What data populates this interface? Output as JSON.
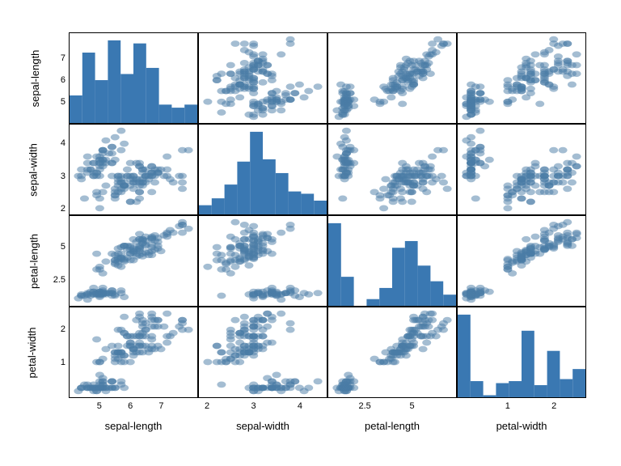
{
  "chart_type": "scatter_matrix",
  "background_color": "#ffffff",
  "border_color": "#000000",
  "marker_color": "#4a7ba6",
  "marker_opacity": 0.5,
  "marker_radius": 3.5,
  "hist_color": "#3a78b2",
  "hist_bins": 10,
  "font_family": "sans-serif",
  "axis_label_fontsize": 13,
  "tick_fontsize": 11,
  "variables": [
    {
      "name": "sepal-length",
      "min": 4.3,
      "max": 7.9,
      "ticks": [
        5,
        6,
        7
      ],
      "hist_counts": [
        9,
        23,
        14,
        27,
        16,
        26,
        18,
        6,
        5,
        6
      ]
    },
    {
      "name": "sepal-width",
      "min": 2.0,
      "max": 4.4,
      "ticks": [
        2,
        3,
        4
      ],
      "hist_counts": [
        4,
        7,
        13,
        23,
        36,
        24,
        18,
        10,
        9,
        6
      ]
    },
    {
      "name": "petal-length",
      "min": 1.0,
      "max": 6.9,
      "ticks": [
        2.5,
        5.0
      ],
      "hist_counts": [
        37,
        13,
        0,
        3,
        8,
        26,
        29,
        18,
        11,
        5
      ]
    },
    {
      "name": "petal-width",
      "min": 0.1,
      "max": 2.5,
      "ticks": [
        1,
        2
      ],
      "hist_counts": [
        41,
        8,
        1,
        7,
        8,
        33,
        6,
        23,
        9,
        14
      ]
    }
  ],
  "iris_data": [
    [
      5.1,
      3.5,
      1.4,
      0.2
    ],
    [
      4.9,
      3.0,
      1.4,
      0.2
    ],
    [
      4.7,
      3.2,
      1.3,
      0.2
    ],
    [
      4.6,
      3.1,
      1.5,
      0.2
    ],
    [
      5.0,
      3.6,
      1.4,
      0.2
    ],
    [
      5.4,
      3.9,
      1.7,
      0.4
    ],
    [
      4.6,
      3.4,
      1.4,
      0.3
    ],
    [
      5.0,
      3.4,
      1.5,
      0.2
    ],
    [
      4.4,
      2.9,
      1.4,
      0.2
    ],
    [
      4.9,
      3.1,
      1.5,
      0.1
    ],
    [
      5.4,
      3.7,
      1.5,
      0.2
    ],
    [
      4.8,
      3.4,
      1.6,
      0.2
    ],
    [
      4.8,
      3.0,
      1.4,
      0.1
    ],
    [
      4.3,
      3.0,
      1.1,
      0.1
    ],
    [
      5.8,
      4.0,
      1.2,
      0.2
    ],
    [
      5.7,
      4.4,
      1.5,
      0.4
    ],
    [
      5.4,
      3.9,
      1.3,
      0.4
    ],
    [
      5.1,
      3.5,
      1.4,
      0.3
    ],
    [
      5.7,
      3.8,
      1.7,
      0.3
    ],
    [
      5.1,
      3.8,
      1.5,
      0.3
    ],
    [
      5.4,
      3.4,
      1.7,
      0.2
    ],
    [
      5.1,
      3.7,
      1.5,
      0.4
    ],
    [
      4.6,
      3.6,
      1.0,
      0.2
    ],
    [
      5.1,
      3.3,
      1.7,
      0.5
    ],
    [
      4.8,
      3.4,
      1.9,
      0.2
    ],
    [
      5.0,
      3.0,
      1.6,
      0.2
    ],
    [
      5.0,
      3.4,
      1.6,
      0.4
    ],
    [
      5.2,
      3.5,
      1.5,
      0.2
    ],
    [
      5.2,
      3.4,
      1.4,
      0.2
    ],
    [
      4.7,
      3.2,
      1.6,
      0.2
    ],
    [
      4.8,
      3.1,
      1.6,
      0.2
    ],
    [
      5.4,
      3.4,
      1.5,
      0.4
    ],
    [
      5.2,
      4.1,
      1.5,
      0.1
    ],
    [
      5.5,
      4.2,
      1.4,
      0.2
    ],
    [
      4.9,
      3.1,
      1.5,
      0.2
    ],
    [
      5.0,
      3.2,
      1.2,
      0.2
    ],
    [
      5.5,
      3.5,
      1.3,
      0.2
    ],
    [
      4.9,
      3.6,
      1.4,
      0.1
    ],
    [
      4.4,
      3.0,
      1.3,
      0.2
    ],
    [
      5.1,
      3.4,
      1.5,
      0.2
    ],
    [
      5.0,
      3.5,
      1.3,
      0.3
    ],
    [
      4.5,
      2.3,
      1.3,
      0.3
    ],
    [
      4.4,
      3.2,
      1.3,
      0.2
    ],
    [
      5.0,
      3.5,
      1.6,
      0.6
    ],
    [
      5.1,
      3.8,
      1.9,
      0.4
    ],
    [
      4.8,
      3.0,
      1.4,
      0.3
    ],
    [
      5.1,
      3.8,
      1.6,
      0.2
    ],
    [
      4.6,
      3.2,
      1.4,
      0.2
    ],
    [
      5.3,
      3.7,
      1.5,
      0.2
    ],
    [
      5.0,
      3.3,
      1.4,
      0.2
    ],
    [
      7.0,
      3.2,
      4.7,
      1.4
    ],
    [
      6.4,
      3.2,
      4.5,
      1.5
    ],
    [
      6.9,
      3.1,
      4.9,
      1.5
    ],
    [
      5.5,
      2.3,
      4.0,
      1.3
    ],
    [
      6.5,
      2.8,
      4.6,
      1.5
    ],
    [
      5.7,
      2.8,
      4.5,
      1.3
    ],
    [
      6.3,
      3.3,
      4.7,
      1.6
    ],
    [
      4.9,
      2.4,
      3.3,
      1.0
    ],
    [
      6.6,
      2.9,
      4.6,
      1.3
    ],
    [
      5.2,
      2.7,
      3.9,
      1.4
    ],
    [
      5.0,
      2.0,
      3.5,
      1.0
    ],
    [
      5.9,
      3.0,
      4.2,
      1.5
    ],
    [
      6.0,
      2.2,
      4.0,
      1.0
    ],
    [
      6.1,
      2.9,
      4.7,
      1.4
    ],
    [
      5.6,
      2.9,
      3.6,
      1.3
    ],
    [
      6.7,
      3.1,
      4.4,
      1.4
    ],
    [
      5.6,
      3.0,
      4.5,
      1.5
    ],
    [
      5.8,
      2.7,
      4.1,
      1.0
    ],
    [
      6.2,
      2.2,
      4.5,
      1.5
    ],
    [
      5.6,
      2.5,
      3.9,
      1.1
    ],
    [
      5.9,
      3.2,
      4.8,
      1.8
    ],
    [
      6.1,
      2.8,
      4.0,
      1.3
    ],
    [
      6.3,
      2.5,
      4.9,
      1.5
    ],
    [
      6.1,
      2.8,
      4.7,
      1.2
    ],
    [
      6.4,
      2.9,
      4.3,
      1.3
    ],
    [
      6.6,
      3.0,
      4.4,
      1.4
    ],
    [
      6.8,
      2.8,
      4.8,
      1.4
    ],
    [
      6.7,
      3.0,
      5.0,
      1.7
    ],
    [
      6.0,
      2.9,
      4.5,
      1.5
    ],
    [
      5.7,
      2.6,
      3.5,
      1.0
    ],
    [
      5.5,
      2.4,
      3.8,
      1.1
    ],
    [
      5.5,
      2.4,
      3.7,
      1.0
    ],
    [
      5.8,
      2.7,
      3.9,
      1.2
    ],
    [
      6.0,
      2.7,
      5.1,
      1.6
    ],
    [
      5.4,
      3.0,
      4.5,
      1.5
    ],
    [
      6.0,
      3.4,
      4.5,
      1.6
    ],
    [
      6.7,
      3.1,
      4.7,
      1.5
    ],
    [
      6.3,
      2.3,
      4.4,
      1.3
    ],
    [
      5.6,
      3.0,
      4.1,
      1.3
    ],
    [
      5.5,
      2.5,
      4.0,
      1.3
    ],
    [
      5.5,
      2.6,
      4.4,
      1.2
    ],
    [
      6.1,
      3.0,
      4.6,
      1.4
    ],
    [
      5.8,
      2.6,
      4.0,
      1.2
    ],
    [
      5.0,
      2.3,
      3.3,
      1.0
    ],
    [
      5.6,
      2.7,
      4.2,
      1.3
    ],
    [
      5.7,
      3.0,
      4.2,
      1.2
    ],
    [
      5.7,
      2.9,
      4.2,
      1.3
    ],
    [
      6.2,
      2.9,
      4.3,
      1.3
    ],
    [
      5.1,
      2.5,
      3.0,
      1.1
    ],
    [
      5.7,
      2.8,
      4.1,
      1.3
    ],
    [
      6.3,
      3.3,
      6.0,
      2.5
    ],
    [
      5.8,
      2.7,
      5.1,
      1.9
    ],
    [
      7.1,
      3.0,
      5.9,
      2.1
    ],
    [
      6.3,
      2.9,
      5.6,
      1.8
    ],
    [
      6.5,
      3.0,
      5.8,
      2.2
    ],
    [
      7.6,
      3.0,
      6.6,
      2.1
    ],
    [
      4.9,
      2.5,
      4.5,
      1.7
    ],
    [
      7.3,
      2.9,
      6.3,
      1.8
    ],
    [
      6.7,
      2.5,
      5.8,
      1.8
    ],
    [
      7.2,
      3.6,
      6.1,
      2.5
    ],
    [
      6.5,
      3.2,
      5.1,
      2.0
    ],
    [
      6.4,
      2.7,
      5.3,
      1.9
    ],
    [
      6.8,
      3.0,
      5.5,
      2.1
    ],
    [
      5.7,
      2.5,
      5.0,
      2.0
    ],
    [
      5.8,
      2.8,
      5.1,
      2.4
    ],
    [
      6.4,
      3.2,
      5.3,
      2.3
    ],
    [
      6.5,
      3.0,
      5.5,
      1.8
    ],
    [
      7.7,
      3.8,
      6.7,
      2.2
    ],
    [
      7.7,
      2.6,
      6.9,
      2.3
    ],
    [
      6.0,
      2.2,
      5.0,
      1.5
    ],
    [
      6.9,
      3.2,
      5.7,
      2.3
    ],
    [
      5.6,
      2.8,
      4.9,
      2.0
    ],
    [
      7.7,
      2.8,
      6.7,
      2.0
    ],
    [
      6.3,
      2.7,
      4.9,
      1.8
    ],
    [
      6.7,
      3.3,
      5.7,
      2.1
    ],
    [
      7.2,
      3.2,
      6.0,
      1.8
    ],
    [
      6.2,
      2.8,
      4.8,
      1.8
    ],
    [
      6.1,
      3.0,
      4.9,
      1.8
    ],
    [
      6.4,
      2.8,
      5.6,
      2.1
    ],
    [
      7.2,
      3.0,
      5.8,
      1.6
    ],
    [
      7.4,
      2.8,
      6.1,
      1.9
    ],
    [
      7.9,
      3.8,
      6.4,
      2.0
    ],
    [
      6.4,
      2.8,
      5.6,
      2.2
    ],
    [
      6.3,
      2.8,
      5.1,
      1.5
    ],
    [
      6.1,
      2.6,
      5.6,
      1.4
    ],
    [
      7.7,
      3.0,
      6.1,
      2.3
    ],
    [
      6.3,
      3.4,
      5.6,
      2.4
    ],
    [
      6.4,
      3.1,
      5.5,
      1.8
    ],
    [
      6.0,
      3.0,
      4.8,
      1.8
    ],
    [
      6.9,
      3.1,
      5.4,
      2.1
    ],
    [
      6.7,
      3.1,
      5.6,
      2.4
    ],
    [
      6.9,
      3.1,
      5.1,
      2.3
    ],
    [
      5.8,
      2.7,
      5.1,
      1.9
    ],
    [
      6.8,
      3.2,
      5.9,
      2.3
    ],
    [
      6.7,
      3.3,
      5.7,
      2.5
    ],
    [
      6.7,
      3.0,
      5.2,
      2.3
    ],
    [
      6.3,
      2.5,
      5.0,
      1.9
    ],
    [
      6.5,
      3.0,
      5.2,
      2.0
    ],
    [
      6.2,
      3.4,
      5.4,
      2.3
    ],
    [
      5.9,
      3.0,
      5.1,
      1.8
    ]
  ]
}
